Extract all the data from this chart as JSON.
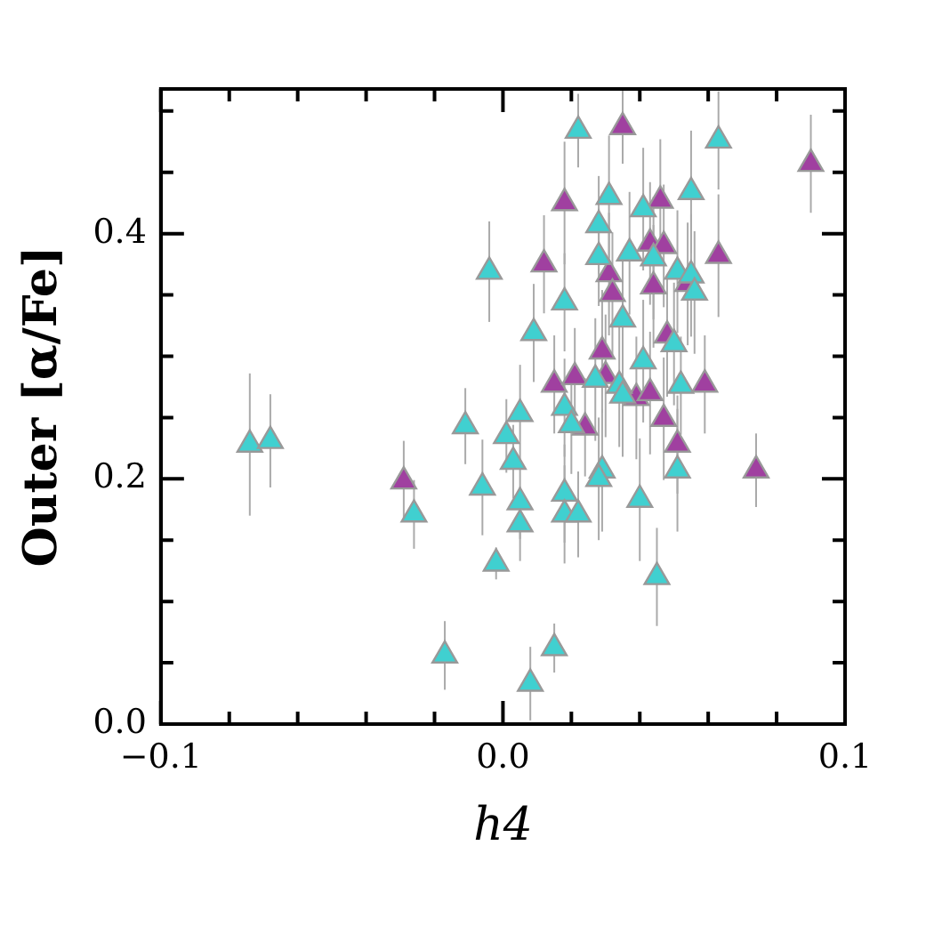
{
  "chart_data": {
    "type": "scatter",
    "xlabel": "h4",
    "ylabel": "Outer [α/Fe]",
    "xlim": [
      -0.1,
      0.1
    ],
    "ylim": [
      0,
      0.518
    ],
    "xticks": [
      {
        "value": -0.1,
        "label": "−0.1"
      },
      {
        "value": -0.08,
        "label": null
      },
      {
        "value": -0.06,
        "label": null
      },
      {
        "value": -0.04,
        "label": null
      },
      {
        "value": -0.02,
        "label": null
      },
      {
        "value": 0,
        "label": "0.0"
      },
      {
        "value": 0.02,
        "label": null
      },
      {
        "value": 0.04,
        "label": null
      },
      {
        "value": 0.06,
        "label": null
      },
      {
        "value": 0.08,
        "label": null
      },
      {
        "value": 0.1,
        "label": "0.1"
      }
    ],
    "yticks": [
      {
        "value": 0,
        "label": "0.0"
      },
      {
        "value": 0.05,
        "label": null
      },
      {
        "value": 0.1,
        "label": null
      },
      {
        "value": 0.15,
        "label": null
      },
      {
        "value": 0.2,
        "label": "0.2"
      },
      {
        "value": 0.25,
        "label": null
      },
      {
        "value": 0.3,
        "label": null
      },
      {
        "value": 0.35,
        "label": null
      },
      {
        "value": 0.4,
        "label": "0.4"
      },
      {
        "value": 0.45,
        "label": null
      },
      {
        "value": 0.5,
        "label": null
      }
    ],
    "grid": false,
    "legend": false,
    "marker": "triangle",
    "series": [
      {
        "color": "#40d0d0",
        "x": [
          -0.074,
          -0.068,
          -0.026,
          -0.011,
          -0.006,
          -0.004,
          -0.002,
          -0.017,
          0.001,
          0.005,
          0.022,
          0.031,
          0.041,
          0.028,
          0.028,
          0.044,
          0.037,
          0.018,
          0.009,
          0.035,
          0.041,
          0.027,
          0.034,
          0.035,
          0.018,
          0.02,
          0.003,
          0.029,
          0.028,
          0.04,
          0.018,
          0.005,
          0.005,
          0.018,
          0.022,
          0.045,
          0.015,
          0.008,
          0.063,
          0.055,
          0.051,
          0.055,
          0.056,
          0.05,
          0.052,
          0.051
        ],
        "values": [
          0.228,
          0.231,
          0.171,
          0.243,
          0.193,
          0.369,
          0.131,
          0.056,
          0.235,
          0.253,
          0.484,
          0.43,
          0.42,
          0.407,
          0.381,
          0.38,
          0.384,
          0.344,
          0.319,
          0.33,
          0.296,
          0.281,
          0.276,
          0.268,
          0.258,
          0.244,
          0.214,
          0.207,
          0.2,
          0.183,
          0.188,
          0.181,
          0.163,
          0.171,
          0.171,
          0.12,
          0.062,
          0.033,
          0.476,
          0.434,
          0.369,
          0.366,
          0.352,
          0.31,
          0.276,
          0.207
        ],
        "errors": [
          0.058,
          0.038,
          0.028,
          0.031,
          0.039,
          0.041,
          0.013,
          0.028,
          0.03,
          0.04,
          0.03,
          0.05,
          0.05,
          0.04,
          0.04,
          0.05,
          0.05,
          0.04,
          0.04,
          0.05,
          0.05,
          0.05,
          0.05,
          0.05,
          0.04,
          0.04,
          0.03,
          0.05,
          0.05,
          0.05,
          0.04,
          0.03,
          0.03,
          0.04,
          0.035,
          0.04,
          0.02,
          0.03,
          0.04,
          0.05,
          0.05,
          0.05,
          0.05,
          0.05,
          0.04,
          0.05
        ]
      },
      {
        "color": "#a040a0",
        "x": [
          -0.029,
          0.035,
          0.018,
          0.046,
          0.043,
          0.031,
          0.032,
          0.044,
          0.012,
          0.048,
          0.029,
          0.015,
          0.021,
          0.03,
          0.039,
          0.043,
          0.024,
          0.047,
          0.09,
          0.047,
          0.063,
          0.054,
          0.059,
          0.051,
          0.074
        ],
        "values": [
          0.198,
          0.487,
          0.425,
          0.427,
          0.392,
          0.367,
          0.351,
          0.357,
          0.375,
          0.317,
          0.304,
          0.277,
          0.283,
          0.284,
          0.266,
          0.27,
          0.242,
          0.249,
          0.457,
          0.39,
          0.382,
          0.359,
          0.277,
          0.228,
          0.207
        ],
        "errors": [
          0.033,
          0.03,
          0.05,
          0.05,
          0.05,
          0.05,
          0.05,
          0.05,
          0.04,
          0.05,
          0.05,
          0.04,
          0.04,
          0.05,
          0.05,
          0.05,
          0.04,
          0.05,
          0.04,
          0.05,
          0.05,
          0.05,
          0.04,
          0.04,
          0.03
        ]
      }
    ]
  }
}
